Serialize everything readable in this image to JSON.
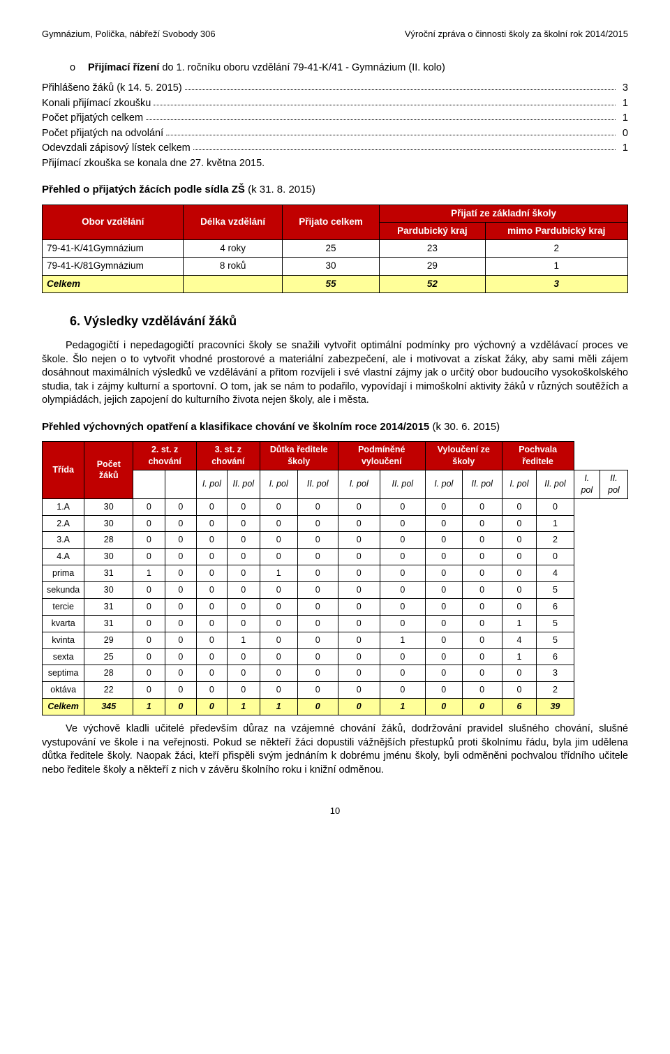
{
  "header": {
    "left": "Gymnázium, Polička, nábřeží Svobody 306",
    "right": "Výroční zpráva o činnosti školy za školní rok 2014/2015"
  },
  "bullet": {
    "marker": "o",
    "prefix": "Přijímací řízení",
    "text_mid": " do 1. ročníku oboru vzdělání 79-41-K/41 - Gymnázium (II. kolo)"
  },
  "stats": [
    {
      "label": "Přihlášeno žáků (k 14. 5. 2015)",
      "value": "3"
    },
    {
      "label": "Konali přijímací zkoušku",
      "value": "1"
    },
    {
      "label": "Počet přijatých celkem",
      "value": "1"
    },
    {
      "label": "Počet přijatých na odvolání",
      "value": "0"
    },
    {
      "label": "Odevzdali zápisový lístek celkem",
      "value": "1"
    }
  ],
  "stat_note": "Přijímací zkouška se konala dne 27. května 2015.",
  "table1_heading": "Přehled o přijatých žácích podle sídla ZŠ (k 31. 8. 2015)",
  "table1": {
    "head": {
      "col_obor": "Obor vzdělání",
      "col_delka": "Délka vzdělání",
      "col_prijato": "Přijato celkem",
      "group": "Přijatí ze základní školy",
      "sub1": "Pardubický kraj",
      "sub2": "mimo Pardubický kraj"
    },
    "rows": [
      {
        "obor": "79-41-K/41Gymnázium",
        "delka": "4 roky",
        "prijato": "25",
        "pk": "23",
        "mimo": "2"
      },
      {
        "obor": "79-41-K/81Gymnázium",
        "delka": "8 roků",
        "prijato": "30",
        "pk": "29",
        "mimo": "1"
      }
    ],
    "total": {
      "obor": "Celkem",
      "delka": "",
      "prijato": "55",
      "pk": "52",
      "mimo": "3"
    }
  },
  "section6_title": "6. Výsledky vzdělávání žáků",
  "para1": "Pedagogičtí i nepedagogičtí pracovníci školy se snažili vytvořit optimální podmínky pro výchovný a vzdělávací proces ve škole. Šlo nejen o to vytvořit vhodné prostorové a materiální zabezpečení, ale i motivovat a získat žáky, aby sami měli zájem dosáhnout maximálních výsledků ve vzdělávání a přitom rozvíjeli i své vlastní zájmy jak o určitý obor budoucího vysokoškolského studia, tak i zájmy kulturní a sportovní. O tom, jak se nám to podařilo, vypovídají i mimoškolní aktivity žáků v různých soutěžích a olympiádách, jejich zapojení do kulturního života nejen školy, ale i města.",
  "table2_heading": "Přehled výchovných opatření a klasifikace chování ve školním roce 2014/2015 (k  30. 6. 2015)",
  "table2": {
    "head": {
      "trida": "Třída",
      "pocet": "Počet žáků",
      "st2": "2. st. z chování",
      "st3": "3. st. z chování",
      "dutka": "Důtka ředitele školy",
      "podm": "Podmíněné vyloučení",
      "vyl": "Vyloučení ze školy",
      "poch": "Pochvala ředitele"
    },
    "sub": {
      "p1": "I. pol",
      "p2": "II. pol"
    },
    "rows": [
      {
        "t": "1.A",
        "n": "30",
        "c": [
          "0",
          "0",
          "0",
          "0",
          "0",
          "0",
          "0",
          "0",
          "0",
          "0",
          "0",
          "0"
        ]
      },
      {
        "t": "2.A",
        "n": "30",
        "c": [
          "0",
          "0",
          "0",
          "0",
          "0",
          "0",
          "0",
          "0",
          "0",
          "0",
          "0",
          "1"
        ]
      },
      {
        "t": "3.A",
        "n": "28",
        "c": [
          "0",
          "0",
          "0",
          "0",
          "0",
          "0",
          "0",
          "0",
          "0",
          "0",
          "0",
          "2"
        ]
      },
      {
        "t": "4.A",
        "n": "30",
        "c": [
          "0",
          "0",
          "0",
          "0",
          "0",
          "0",
          "0",
          "0",
          "0",
          "0",
          "0",
          "0"
        ]
      },
      {
        "t": "prima",
        "n": "31",
        "c": [
          "1",
          "0",
          "0",
          "0",
          "1",
          "0",
          "0",
          "0",
          "0",
          "0",
          "0",
          "4"
        ]
      },
      {
        "t": "sekunda",
        "n": "30",
        "c": [
          "0",
          "0",
          "0",
          "0",
          "0",
          "0",
          "0",
          "0",
          "0",
          "0",
          "0",
          "5"
        ]
      },
      {
        "t": "tercie",
        "n": "31",
        "c": [
          "0",
          "0",
          "0",
          "0",
          "0",
          "0",
          "0",
          "0",
          "0",
          "0",
          "0",
          "6"
        ]
      },
      {
        "t": "kvarta",
        "n": "31",
        "c": [
          "0",
          "0",
          "0",
          "0",
          "0",
          "0",
          "0",
          "0",
          "0",
          "0",
          "1",
          "5"
        ]
      },
      {
        "t": "kvinta",
        "n": "29",
        "c": [
          "0",
          "0",
          "0",
          "1",
          "0",
          "0",
          "0",
          "1",
          "0",
          "0",
          "4",
          "5"
        ]
      },
      {
        "t": "sexta",
        "n": "25",
        "c": [
          "0",
          "0",
          "0",
          "0",
          "0",
          "0",
          "0",
          "0",
          "0",
          "0",
          "1",
          "6"
        ]
      },
      {
        "t": "septima",
        "n": "28",
        "c": [
          "0",
          "0",
          "0",
          "0",
          "0",
          "0",
          "0",
          "0",
          "0",
          "0",
          "0",
          "3"
        ]
      },
      {
        "t": "oktáva",
        "n": "22",
        "c": [
          "0",
          "0",
          "0",
          "0",
          "0",
          "0",
          "0",
          "0",
          "0",
          "0",
          "0",
          "2"
        ]
      }
    ],
    "total": {
      "t": "Celkem",
      "n": "345",
      "c": [
        "1",
        "0",
        "0",
        "1",
        "1",
        "0",
        "0",
        "1",
        "0",
        "0",
        "6",
        "39"
      ]
    }
  },
  "para2": "Ve výchově kladli učitelé především důraz na vzájemné chování žáků, dodržování pravidel slušného chování, slušné vystupování ve škole i na veřejnosti. Pokud se někteří žáci dopustili vážnějších přestupků proti školnímu řádu, byla jim udělena důtka ředitele školy. Naopak žáci, kteří přispěli svým jednáním k dobrému jménu školy, byli odměněni pochvalou třídního učitele nebo ředitele školy a někteří z nich v závěru školního roku i knižní odměnou.",
  "page_num": "10",
  "colors": {
    "header_bg": "#c00000",
    "header_fg": "#ffffff",
    "highlight_bg": "#ffff99"
  }
}
